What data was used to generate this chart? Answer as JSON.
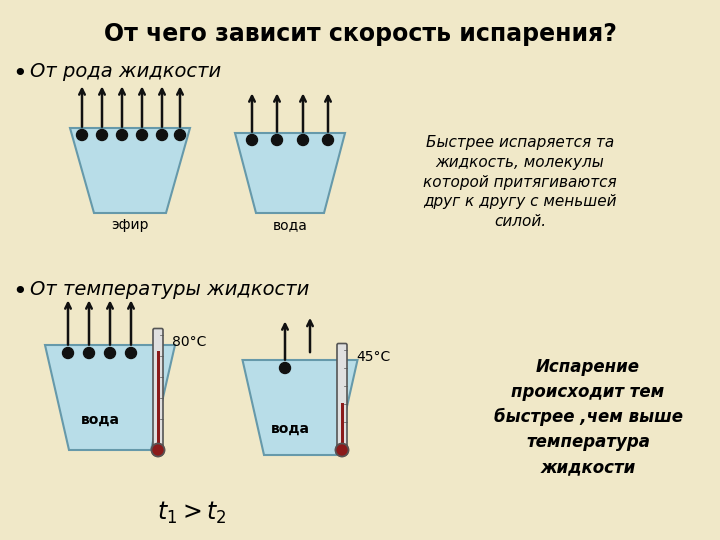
{
  "title": "От чего зависит скорость испарения?",
  "bg_color": "#f0e8c8",
  "liquid_color": "#b8dde8",
  "liquid_outline": "#6699aa",
  "molecule_color": "#111111",
  "arrow_color": "#111111",
  "therm_body": "#e0e0e0",
  "therm_fill": "#8b1a1a",
  "therm_outline": "#555555",
  "bullet1": "От рода жидкости",
  "bullet2": "От температуры жидкости",
  "label_efir": "эфир",
  "label_voda1": "вода",
  "label_voda2": "вода",
  "label_voda3": "вода",
  "temp1": "80°С",
  "temp2": "45°С",
  "t_relation": "t",
  "comment1": "Быстрее испаряется та\nжидкость, молекулы\nкоторой притягиваются\nдруг к другу с меньшей\nсилой.",
  "comment2": "Испарение\nпроисходит тем\nбыстрее ,чем выше\nтемпература\nжидкости"
}
